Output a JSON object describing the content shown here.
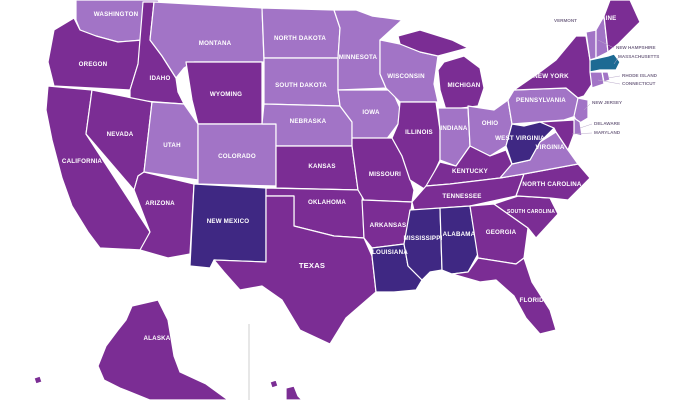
{
  "colors": {
    "high": "#7b2d94",
    "medium": "#a274c6",
    "darkest": "#3f2883",
    "highlight": "#1d6a93",
    "background": "#ffffff"
  },
  "states": {
    "washington": {
      "label": "WASHINGTON",
      "level": "medium"
    },
    "oregon": {
      "label": "OREGON",
      "level": "high"
    },
    "california": {
      "label": "CALIFORNIA",
      "level": "high"
    },
    "idaho": {
      "label": "IDAHO",
      "level": "high"
    },
    "nevada": {
      "label": "NEVADA",
      "level": "high"
    },
    "montana": {
      "label": "MONTANA",
      "level": "medium"
    },
    "wyoming": {
      "label": "WYOMING",
      "level": "high"
    },
    "utah": {
      "label": "UTAH",
      "level": "medium"
    },
    "colorado": {
      "label": "COLORADO",
      "level": "medium"
    },
    "arizona": {
      "label": "ARIZONA",
      "level": "high"
    },
    "new_mexico": {
      "label": "NEW MEXICO",
      "level": "darkest"
    },
    "north_dakota": {
      "label": "NORTH DAKOTA",
      "level": "medium"
    },
    "south_dakota": {
      "label": "SOUTH DAKOTA",
      "level": "medium"
    },
    "nebraska": {
      "label": "NEBRASKA",
      "level": "medium"
    },
    "kansas": {
      "label": "KANSAS",
      "level": "high"
    },
    "oklahoma": {
      "label": "OKLAHOMA",
      "level": "high"
    },
    "texas": {
      "label": "TEXAS",
      "level": "high"
    },
    "minnesota": {
      "label": "MINNESOTA",
      "level": "medium"
    },
    "iowa": {
      "label": "IOWA",
      "level": "medium"
    },
    "missouri": {
      "label": "MISSOURI",
      "level": "high"
    },
    "arkansas": {
      "label": "ARKANSAS",
      "level": "high"
    },
    "louisiana": {
      "label": "LOUISIANA",
      "level": "darkest"
    },
    "wisconsin": {
      "label": "WISCONSIN",
      "level": "medium"
    },
    "illinois": {
      "label": "ILLINOIS",
      "level": "high"
    },
    "michigan": {
      "label": "MICHIGAN",
      "level": "high"
    },
    "indiana": {
      "label": "INDIANA",
      "level": "medium"
    },
    "ohio": {
      "label": "OHIO",
      "level": "medium"
    },
    "kentucky": {
      "label": "KENTUCKY",
      "level": "high"
    },
    "tennessee": {
      "label": "TENNESSEE",
      "level": "high"
    },
    "mississippi": {
      "label": "MISSISSIPPI",
      "level": "darkest"
    },
    "alabama": {
      "label": "ALABAMA",
      "level": "darkest"
    },
    "georgia": {
      "label": "GEORGIA",
      "level": "high"
    },
    "florida": {
      "label": "FLORIDA",
      "level": "high"
    },
    "south_carolina": {
      "label": "SOUTH CAROLINA",
      "level": "high"
    },
    "north_carolina": {
      "label": "NORTH CAROLINA",
      "level": "high"
    },
    "virginia": {
      "label": "VIRGINIA",
      "level": "medium"
    },
    "west_virginia": {
      "label": "WEST VIRGINIA",
      "level": "darkest"
    },
    "pennsylvania": {
      "label": "PENNSYLVANIA",
      "level": "medium"
    },
    "new_york": {
      "label": "NEW YORK",
      "level": "high"
    },
    "vermont": {
      "label": "VERMONT",
      "level": "medium"
    },
    "new_hampshire": {
      "label": "NEW HAMPSHIRE",
      "level": "medium"
    },
    "maine": {
      "label": "MAINE",
      "level": "high"
    },
    "massachusetts": {
      "label": "MASSACHUSETTS",
      "level": "highlight"
    },
    "rhode_island": {
      "label": "RHODE ISLAND",
      "level": "medium"
    },
    "connecticut": {
      "label": "CONNECTICUT",
      "level": "medium"
    },
    "new_jersey": {
      "label": "NEW JERSEY",
      "level": "medium"
    },
    "delaware": {
      "label": "DELAWARE",
      "level": "medium"
    },
    "maryland": {
      "label": "MARYLAND",
      "level": "high"
    },
    "alaska": {
      "label": "ALASKA",
      "level": "high"
    },
    "hawaii": {
      "level": "high"
    }
  }
}
